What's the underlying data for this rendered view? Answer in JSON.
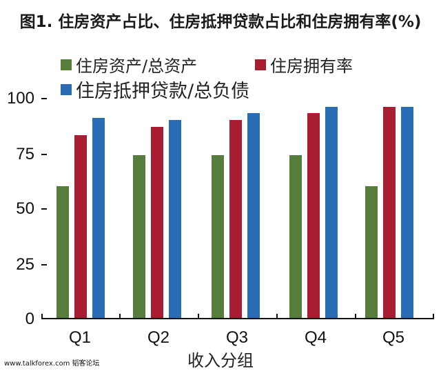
{
  "title": "图1. 住房资产占比、住房抵押贷款占比和住房拥有率(%)",
  "legend": [
    {
      "label": "住房资产/总资产",
      "color": "#567d3c"
    },
    {
      "label": "住房拥有率",
      "color": "#a91d32"
    },
    {
      "label": "住房抵押贷款/总负债",
      "color": "#2a6db5"
    }
  ],
  "y_ticks": [
    "100",
    "75",
    "50",
    "25",
    "0"
  ],
  "x_axis_label": "收入分组",
  "watermark": "www.talkforex.com 韬客论坛",
  "chart_data": {
    "type": "bar",
    "title": "图1. 住房资产占比、住房抵押贷款占比和住房拥有率(%)",
    "xlabel": "收入分组",
    "ylabel": "",
    "categories": [
      "Q1",
      "Q2",
      "Q3",
      "Q4",
      "Q5"
    ],
    "series": [
      {
        "name": "住房资产/总资产",
        "color": "#567d3c",
        "values": [
          60,
          74,
          74,
          74,
          60
        ]
      },
      {
        "name": "住房拥有率",
        "color": "#a91d32",
        "values": [
          83,
          87,
          90,
          93,
          96
        ]
      },
      {
        "name": "住房抵押贷款/总负债",
        "color": "#2a6db5",
        "values": [
          91,
          90,
          93,
          96,
          96
        ]
      }
    ],
    "ylim": [
      0,
      100
    ],
    "yticks": [
      0,
      25,
      50,
      75,
      100
    ],
    "grid": false,
    "legend_position": "top-left"
  }
}
